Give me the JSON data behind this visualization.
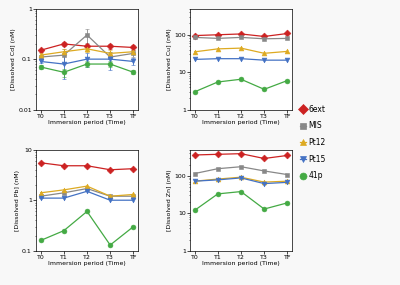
{
  "x_labels": [
    "T0",
    "T1",
    "T2",
    "T3",
    "TF"
  ],
  "x": [
    0,
    1,
    2,
    3,
    4
  ],
  "cd_6ext": [
    0.15,
    0.2,
    0.18,
    0.18,
    0.17
  ],
  "cd_MIS": [
    0.11,
    0.12,
    0.3,
    0.11,
    0.13
  ],
  "cd_Pt12": [
    0.12,
    0.14,
    0.16,
    0.13,
    0.14
  ],
  "cd_Pt15": [
    0.09,
    0.08,
    0.1,
    0.1,
    0.09
  ],
  "cd_41p": [
    0.07,
    0.055,
    0.08,
    0.08,
    0.055
  ],
  "cd_err_6ext": [
    0.01,
    0.02,
    0.02,
    0.02,
    0.02
  ],
  "cd_err_MIS": [
    0.01,
    0.04,
    0.09,
    0.03,
    0.02
  ],
  "cd_err_Pt12": [
    0.01,
    0.02,
    0.02,
    0.02,
    0.01
  ],
  "cd_err_Pt15": [
    0.005,
    0.04,
    0.03,
    0.04,
    0.015
  ],
  "cd_err_41p": [
    0.005,
    0.01,
    0.01,
    0.01,
    0.005
  ],
  "cu_6ext": [
    95,
    100,
    105,
    90,
    108
  ],
  "cu_MIS": [
    85,
    80,
    85,
    78,
    80
  ],
  "cu_Pt12": [
    35,
    42,
    44,
    32,
    36
  ],
  "cu_Pt15": [
    22,
    23,
    23,
    21,
    21
  ],
  "cu_41p": [
    3.0,
    5.5,
    6.5,
    3.5,
    6.0
  ],
  "pb_6ext": [
    5.5,
    4.8,
    4.8,
    4.0,
    4.2
  ],
  "pb_MIS": [
    1.2,
    1.4,
    1.7,
    1.2,
    1.2
  ],
  "pb_Pt12": [
    1.4,
    1.6,
    1.9,
    1.2,
    1.3
  ],
  "pb_Pt15": [
    1.1,
    1.1,
    1.5,
    1.0,
    1.0
  ],
  "pb_41p": [
    0.16,
    0.25,
    0.6,
    0.13,
    0.3
  ],
  "zn_6ext": [
    360,
    375,
    390,
    290,
    350
  ],
  "zn_MIS": [
    115,
    155,
    175,
    135,
    108
  ],
  "zn_Pt12": [
    72,
    82,
    92,
    68,
    72
  ],
  "zn_Pt15": [
    72,
    78,
    88,
    62,
    67
  ],
  "zn_41p": [
    12,
    33,
    38,
    13,
    19
  ],
  "colors": {
    "6ext": "#cc2222",
    "MIS": "#888888",
    "Pt12": "#ddaa22",
    "Pt15": "#4472c4",
    "41p": "#44aa44"
  },
  "markers": {
    "6ext": "D",
    "MIS": "s",
    "Pt12": "^",
    "Pt15": "v",
    "41p": "o"
  },
  "markersize": 3.5,
  "linewidth": 0.9,
  "legend_labels": [
    "6ext",
    "MIS",
    "Pt12",
    "Pt15",
    "41p"
  ],
  "ylabel_cd": "[Dissolved Cd] (nM)",
  "ylabel_cu": "[Dissolved Cu] (nM)",
  "ylabel_pb": "[Dissolved Pb] (nM)",
  "ylabel_zn": "[Dissolved Zn] (nM)",
  "xlabel": "Immersion period (Time)",
  "cd_ylim": [
    0.01,
    1.0
  ],
  "cu_ylim": [
    1,
    500
  ],
  "pb_ylim": [
    0.1,
    10.0
  ],
  "zn_ylim": [
    1,
    500
  ],
  "bg_color": "#ffffff",
  "fig_bg_color": "#f8f8f8"
}
